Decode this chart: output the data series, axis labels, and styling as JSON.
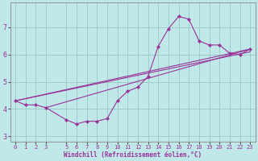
{
  "xlabel": "Windchill (Refroidissement éolien,°C)",
  "bg_color": "#c0e8e8",
  "grid_color": "#a0cccc",
  "line_color": "#993399",
  "xlim": [
    -0.5,
    23.5
  ],
  "ylim": [
    2.8,
    7.9
  ],
  "xticks": [
    0,
    1,
    2,
    3,
    5,
    6,
    7,
    8,
    9,
    10,
    11,
    12,
    13,
    14,
    15,
    16,
    17,
    18,
    19,
    20,
    21,
    22,
    23
  ],
  "yticks": [
    3,
    4,
    5,
    6,
    7
  ],
  "curve_x": [
    0,
    1,
    2,
    3,
    5,
    6,
    7,
    8,
    9,
    10,
    11,
    12,
    13,
    14,
    15,
    16,
    17,
    18,
    19,
    20,
    21,
    22,
    23
  ],
  "curve_y": [
    4.3,
    4.15,
    4.15,
    4.05,
    3.6,
    3.45,
    3.55,
    3.55,
    3.65,
    4.3,
    4.65,
    4.8,
    5.2,
    6.3,
    6.95,
    7.4,
    7.3,
    6.5,
    6.35,
    6.35,
    6.05,
    6.0,
    6.2
  ],
  "line1_x": [
    0,
    23
  ],
  "line1_y": [
    4.3,
    6.2
  ],
  "line2_x": [
    0,
    23
  ],
  "line2_y": [
    4.3,
    6.1
  ],
  "line3_x": [
    3,
    23
  ],
  "line3_y": [
    4.05,
    6.2
  ]
}
